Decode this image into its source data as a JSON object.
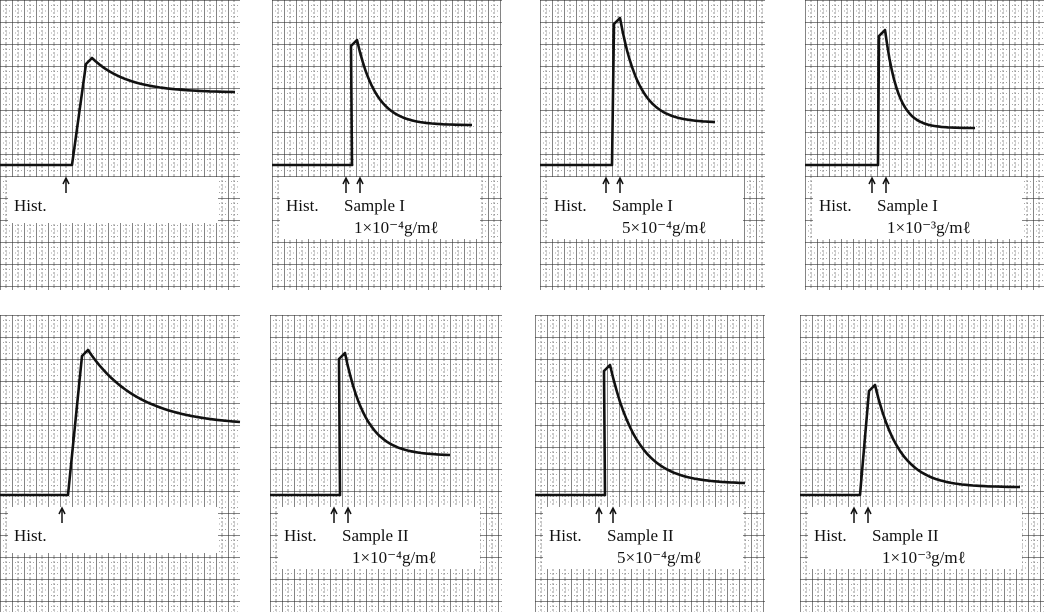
{
  "panels": [
    {
      "hist": "Hist."
    },
    {
      "hist": "Hist.",
      "sample": "Sample I",
      "concentration": "1×10⁻⁴g/mℓ"
    },
    {
      "hist": "Hist.",
      "sample": "Sample I",
      "concentration": "5×10⁻⁴g/mℓ"
    },
    {
      "hist": "Hist.",
      "sample": "Sample I",
      "concentration": "1×10⁻³g/mℓ"
    },
    {
      "hist": "Hist."
    },
    {
      "hist": "Hist.",
      "sample": "Sample II",
      "concentration": "1×10⁻⁴g/mℓ"
    },
    {
      "hist": "Hist.",
      "sample": "Sample II",
      "concentration": "5×10⁻⁴g/mℓ"
    },
    {
      "hist": "Hist.",
      "sample": "Sample II",
      "concentration": "1×10⁻³g/mℓ"
    }
  ]
}
